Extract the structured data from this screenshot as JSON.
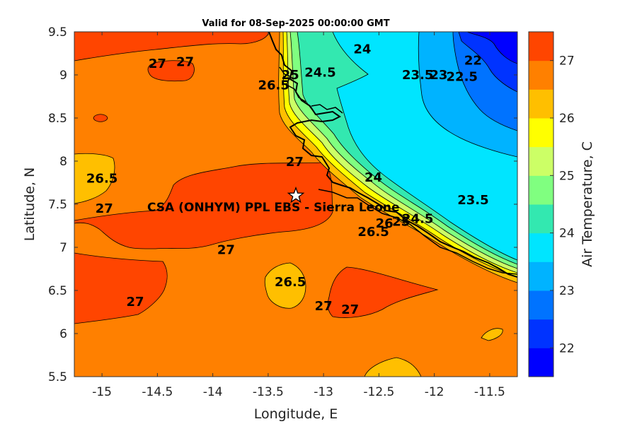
{
  "chart_data": {
    "type": "contour-map",
    "title": "Valid for 08-Sep-2025 00:00:00 GMT",
    "xlabel": "Longitude, E",
    "ylabel": "Latitude, N",
    "xlim": [
      -15.25,
      -11.25
    ],
    "ylim": [
      5.5,
      9.5
    ],
    "x_ticks": [
      -15,
      -14.5,
      -14,
      -13.5,
      -13,
      -12.5,
      -12,
      -11.5
    ],
    "x_tick_labels": [
      "-15",
      "-14.5",
      "-14",
      "-13.5",
      "-13",
      "-12.5",
      "-12",
      "-11.5"
    ],
    "y_ticks": [
      5.5,
      6,
      6.5,
      7,
      7.5,
      8,
      8.5,
      9,
      9.5
    ],
    "y_tick_labels": [
      "5.5",
      "6",
      "6.5",
      "7",
      "7.5",
      "8",
      "8.5",
      "9",
      "9.5"
    ],
    "colorbar": {
      "label": "Air Temperature, C",
      "range": [
        21.5,
        27.5
      ],
      "step": 0.5,
      "tick_values": [
        22,
        23,
        24,
        25,
        26,
        27
      ],
      "tick_labels": [
        "22",
        "23",
        "24",
        "25",
        "26",
        "27"
      ],
      "colors": [
        "#0000ff",
        "#0033ff",
        "#0073ff",
        "#00b3ff",
        "#00e5ff",
        "#33e8b0",
        "#80ff80",
        "#ccff66",
        "#ffff00",
        "#ffbf00",
        "#ff8000",
        "#ff4500"
      ]
    },
    "site": {
      "label": "CSA (ONHYM) PPL EBS - Sierra Leone",
      "lon": -13.25,
      "lat": 7.6,
      "marker": "white star"
    },
    "contour_labels": [
      {
        "text": "27",
        "lon": -14.5,
        "lat": 9.13
      },
      {
        "text": "27",
        "lon": -14.25,
        "lat": 9.15
      },
      {
        "text": "24",
        "lon": -12.65,
        "lat": 9.3
      },
      {
        "text": "26.5",
        "lon": -13.45,
        "lat": 8.88
      },
      {
        "text": "25",
        "lon": -13.3,
        "lat": 9.0
      },
      {
        "text": "24.5",
        "lon": -13.03,
        "lat": 9.03
      },
      {
        "text": "23.5",
        "lon": -12.15,
        "lat": 9.0
      },
      {
        "text": "23",
        "lon": -11.96,
        "lat": 9.0
      },
      {
        "text": "22.5",
        "lon": -11.75,
        "lat": 8.98
      },
      {
        "text": "22",
        "lon": -11.65,
        "lat": 9.17
      },
      {
        "text": "26.5",
        "lon": -15.0,
        "lat": 7.8
      },
      {
        "text": "27",
        "lon": -13.26,
        "lat": 7.99
      },
      {
        "text": "27",
        "lon": -14.98,
        "lat": 7.45
      },
      {
        "text": "24",
        "lon": -12.55,
        "lat": 7.81
      },
      {
        "text": "23.5",
        "lon": -11.65,
        "lat": 7.55
      },
      {
        "text": "24.5",
        "lon": -12.15,
        "lat": 7.33
      },
      {
        "text": "25",
        "lon": -12.3,
        "lat": 7.3
      },
      {
        "text": "26",
        "lon": -12.45,
        "lat": 7.28
      },
      {
        "text": "26.5",
        "lon": -12.55,
        "lat": 7.18
      },
      {
        "text": "27",
        "lon": -13.88,
        "lat": 6.97
      },
      {
        "text": "26.5",
        "lon": -13.3,
        "lat": 6.6
      },
      {
        "text": "27",
        "lon": -14.7,
        "lat": 6.37
      },
      {
        "text": "27",
        "lon": -13.0,
        "lat": 6.32
      },
      {
        "text": "27",
        "lon": -12.76,
        "lat": 6.28
      }
    ]
  }
}
